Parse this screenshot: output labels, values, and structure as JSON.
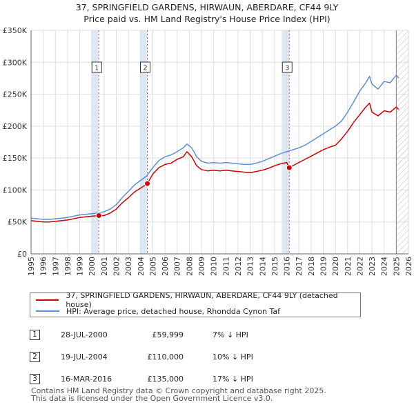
{
  "chart_data": {
    "type": "line",
    "title": "37, SPRINGFIELD GARDENS, HIRWAUN, ABERDARE, CF44 9LY",
    "subtitle": "Price paid vs. HM Land Registry's House Price Index (HPI)",
    "xlabel": "",
    "ylabel": "",
    "xlim": [
      1995,
      2026
    ],
    "ylim": [
      0,
      350000
    ],
    "grid": true,
    "x_ticks": [
      1995,
      1996,
      1997,
      1998,
      1999,
      2000,
      2001,
      2002,
      2003,
      2004,
      2005,
      2006,
      2007,
      2008,
      2009,
      2010,
      2011,
      2012,
      2013,
      2014,
      2015,
      2016,
      2017,
      2018,
      2019,
      2020,
      2021,
      2022,
      2023,
      2024,
      2025,
      2026
    ],
    "y_ticks": [
      0,
      50000,
      100000,
      150000,
      200000,
      250000,
      300000,
      350000
    ],
    "y_tick_labels": [
      "£0",
      "£50K",
      "£100K",
      "£150K",
      "£200K",
      "£250K",
      "£300K",
      "£350K"
    ],
    "forecast_from": 2025.0,
    "series": [
      {
        "name": "37, SPRINGFIELD GARDENS, HIRWAUN, ABERDARE, CF44 9LY (detached house)",
        "color": "#cc0000",
        "x": [
          1995.0,
          1995.5,
          1996.0,
          1996.5,
          1997.0,
          1997.5,
          1998.0,
          1998.5,
          1999.0,
          1999.5,
          2000.0,
          2000.57,
          2001.0,
          2001.5,
          2002.0,
          2002.5,
          2003.0,
          2003.5,
          2004.0,
          2004.55,
          2005.0,
          2005.5,
          2006.0,
          2006.5,
          2007.0,
          2007.5,
          2007.8,
          2008.2,
          2008.6,
          2009.0,
          2009.5,
          2010.0,
          2010.5,
          2011.0,
          2011.5,
          2012.0,
          2012.5,
          2013.0,
          2013.5,
          2014.0,
          2014.5,
          2015.0,
          2015.5,
          2016.0,
          2016.21,
          2016.7,
          2017.0,
          2017.5,
          2018.0,
          2018.5,
          2019.0,
          2019.5,
          2020.0,
          2020.5,
          2021.0,
          2021.5,
          2022.0,
          2022.5,
          2022.8,
          2023.0,
          2023.5,
          2024.0,
          2024.5,
          2025.0,
          2025.2
        ],
        "values": [
          52000,
          51000,
          50000,
          50000,
          51000,
          52000,
          53000,
          55000,
          57000,
          58000,
          59000,
          59999,
          60000,
          64000,
          70000,
          80000,
          88000,
          97000,
          103000,
          110000,
          125000,
          135000,
          140000,
          142000,
          148000,
          152000,
          160000,
          152000,
          138000,
          132000,
          130000,
          131000,
          130000,
          131000,
          130000,
          129000,
          128000,
          127000,
          129000,
          131000,
          134000,
          138000,
          141000,
          143000,
          135000,
          140000,
          143000,
          148000,
          153000,
          158000,
          163000,
          167000,
          170000,
          180000,
          192000,
          206000,
          218000,
          230000,
          236000,
          222000,
          216000,
          224000,
          222000,
          230000,
          226000
        ]
      },
      {
        "name": "HPI: Average price, detached house, Rhondda Cynon Taf",
        "color": "#5b8fd6",
        "x": [
          1995.0,
          1995.5,
          1996.0,
          1996.5,
          1997.0,
          1997.5,
          1998.0,
          1998.5,
          1999.0,
          1999.5,
          2000.0,
          2000.5,
          2001.0,
          2001.5,
          2002.0,
          2002.5,
          2003.0,
          2003.5,
          2004.0,
          2004.5,
          2005.0,
          2005.5,
          2006.0,
          2006.5,
          2007.0,
          2007.5,
          2007.8,
          2008.2,
          2008.6,
          2009.0,
          2009.5,
          2010.0,
          2010.5,
          2011.0,
          2011.5,
          2012.0,
          2012.5,
          2013.0,
          2013.5,
          2014.0,
          2014.5,
          2015.0,
          2015.5,
          2016.0,
          2016.5,
          2017.0,
          2017.5,
          2018.0,
          2018.5,
          2019.0,
          2019.5,
          2020.0,
          2020.5,
          2021.0,
          2021.5,
          2022.0,
          2022.5,
          2022.8,
          2023.0,
          2023.5,
          2024.0,
          2024.5,
          2025.0,
          2025.2
        ],
        "values": [
          56000,
          55000,
          54000,
          54000,
          55000,
          56000,
          57000,
          59000,
          61000,
          62000,
          63000,
          64000,
          66000,
          70000,
          77000,
          88000,
          98000,
          108000,
          115000,
          122000,
          135000,
          146000,
          152000,
          155000,
          160000,
          166000,
          172000,
          166000,
          152000,
          145000,
          142000,
          143000,
          142000,
          143000,
          142000,
          141000,
          140000,
          140000,
          142000,
          145000,
          149000,
          153000,
          157000,
          160000,
          163000,
          166000,
          170000,
          176000,
          182000,
          188000,
          194000,
          200000,
          208000,
          222000,
          238000,
          255000,
          268000,
          278000,
          266000,
          258000,
          270000,
          268000,
          280000,
          275000
        ]
      }
    ],
    "sales": [
      {
        "label": "1",
        "x": 2000.57,
        "value": 59999
      },
      {
        "label": "2",
        "x": 2004.55,
        "value": 110000
      },
      {
        "label": "3",
        "x": 2016.21,
        "value": 135000
      }
    ]
  },
  "legend": {
    "property_label": "37, SPRINGFIELD GARDENS, HIRWAUN, ABERDARE, CF44 9LY (detached house)",
    "hpi_label": "HPI: Average price, detached house, Rhondda Cynon Taf"
  },
  "transactions": [
    {
      "num": "1",
      "date": "28-JUL-2000",
      "price": "£59,999",
      "hpi": "7% ↓ HPI"
    },
    {
      "num": "2",
      "date": "19-JUL-2004",
      "price": "£110,000",
      "hpi": "10% ↓ HPI"
    },
    {
      "num": "3",
      "date": "16-MAR-2016",
      "price": "£135,000",
      "hpi": "17% ↓ HPI"
    }
  ],
  "footer": {
    "line1": "Contains HM Land Registry data © Crown copyright and database right 2025.",
    "line2": "This data is licensed under the Open Government Licence v3.0."
  },
  "colors": {
    "property": "#cc0000",
    "hpi": "#5b8fd6",
    "sale_shade": "#dde8f6",
    "sale_line": "#cc0000",
    "grid": "#dddddd"
  }
}
